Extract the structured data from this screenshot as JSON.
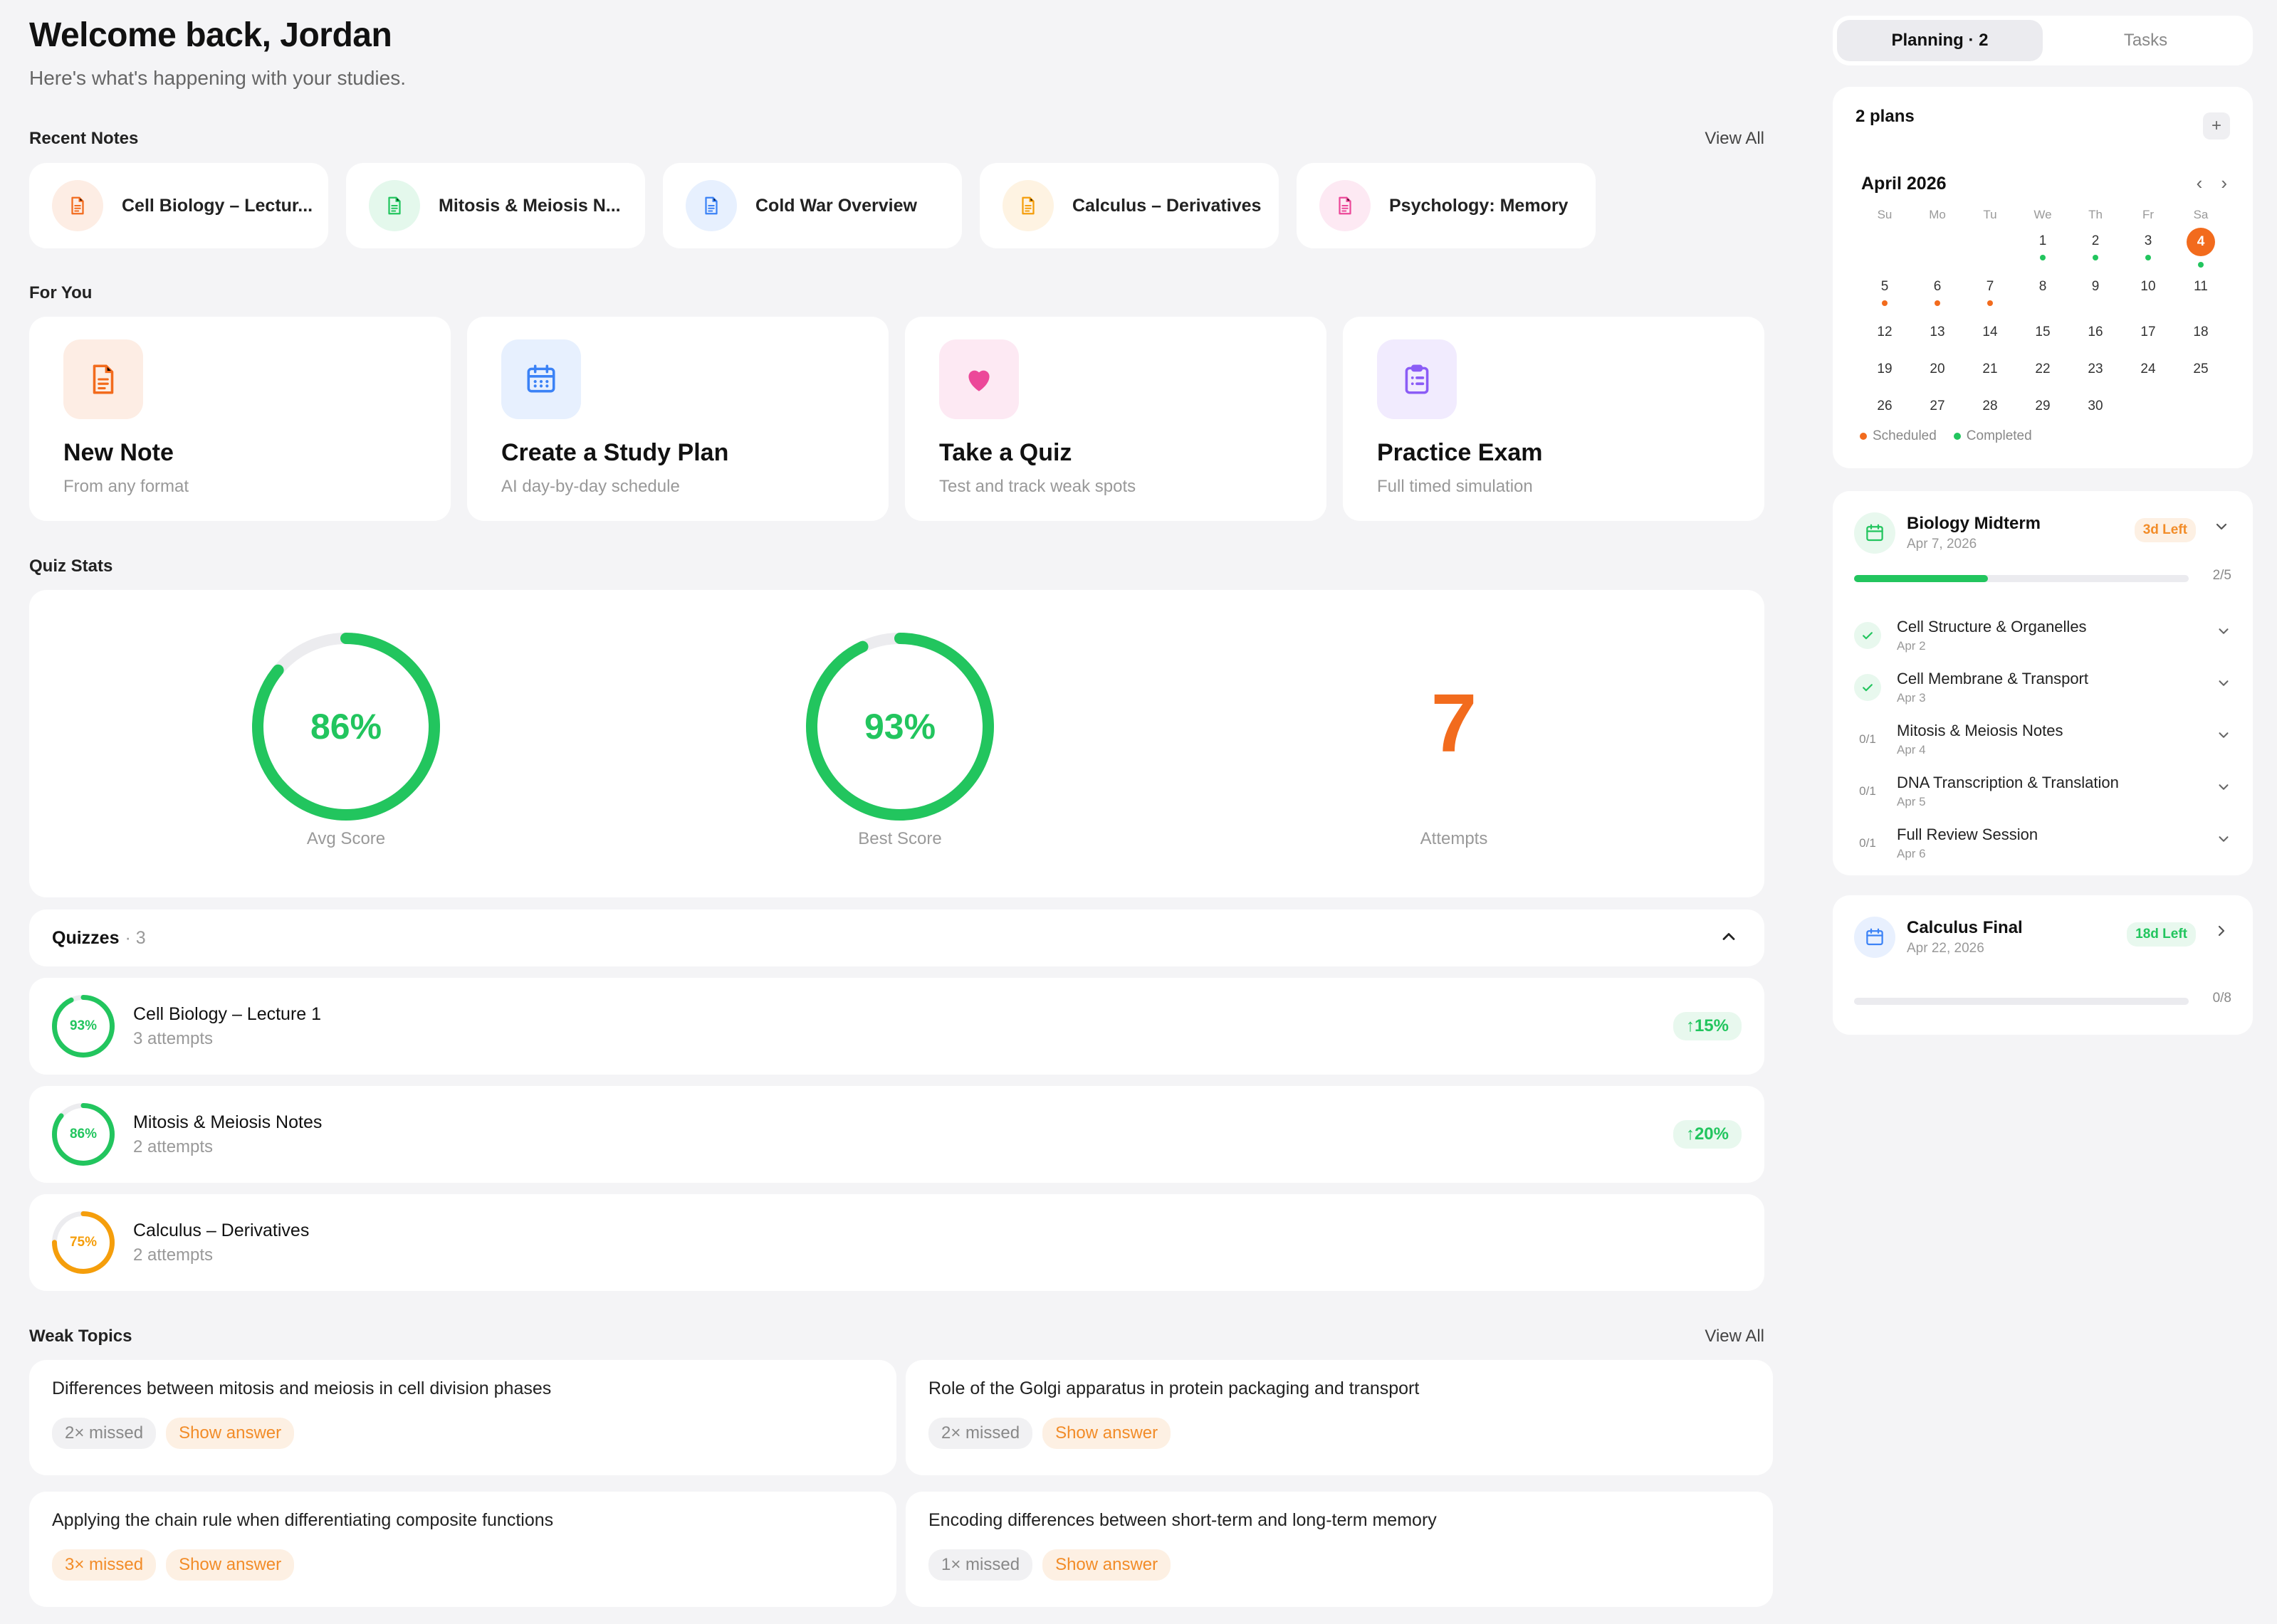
{
  "header": {
    "title": "Welcome back, Jordan",
    "subtitle": "Here's what's happening with your studies."
  },
  "recent_notes": {
    "label": "Recent Notes",
    "view_all": "View All",
    "items": [
      {
        "title": "Cell Biology – Lectur...",
        "color": "#f26b1d"
      },
      {
        "title": "Mitosis & Meiosis N...",
        "color": "#22c55e"
      },
      {
        "title": "Cold War Overview",
        "color": "#3b82f6"
      },
      {
        "title": "Calculus – Derivatives",
        "color": "#f59e0b"
      },
      {
        "title": "Psychology: Memory",
        "color": "#ec4899"
      }
    ]
  },
  "for_you": {
    "label": "For You",
    "items": [
      {
        "title": "New Note",
        "desc": "From any format",
        "icon": "document-icon",
        "color": "#f26b1d"
      },
      {
        "title": "Create a Study Plan",
        "desc": "AI day-by-day schedule",
        "icon": "calendar-icon",
        "color": "#3b82f6"
      },
      {
        "title": "Take a Quiz",
        "desc": "Test and track weak spots",
        "icon": "heart-icon",
        "color": "#ec4899"
      },
      {
        "title": "Practice Exam",
        "desc": "Full timed simulation",
        "icon": "clipboard-icon",
        "color": "#8b5cf6"
      }
    ]
  },
  "quiz_stats": {
    "label": "Quiz Stats",
    "avg": {
      "value": "86%",
      "label": "Avg Score",
      "fraction": 0.86
    },
    "best": {
      "value": "93%",
      "label": "Best Score",
      "fraction": 0.93
    },
    "attempts": {
      "value": "7",
      "label": "Attempts"
    }
  },
  "quizzes": {
    "label": "Quizzes",
    "count": "· 3",
    "items": [
      {
        "name": "Cell Biology – Lecture 1",
        "attempts": "3 attempts",
        "score": "93%",
        "fraction": 0.93,
        "color": "#22c55e",
        "delta": "↑15%"
      },
      {
        "name": "Mitosis & Meiosis Notes",
        "attempts": "2 attempts",
        "score": "86%",
        "fraction": 0.86,
        "color": "#22c55e",
        "delta": "↑20%"
      },
      {
        "name": "Calculus – Derivatives",
        "attempts": "2 attempts",
        "score": "75%",
        "fraction": 0.75,
        "color": "#f59e0b",
        "delta": ""
      }
    ]
  },
  "weak_topics": {
    "label": "Weak Topics",
    "view_all": "View All",
    "items": [
      {
        "question": "Differences between mitosis and meiosis in cell division phases",
        "missed": "2× missed",
        "show": "Show answer"
      },
      {
        "question": "Role of the Golgi apparatus in protein packaging and transport",
        "missed": "2× missed",
        "show": "Show answer"
      },
      {
        "question": "Applying the chain rule when differentiating composite functions",
        "missed": "3× missed",
        "show": "Show answer"
      },
      {
        "question": "Encoding differences between short-term and long-term memory",
        "missed": "1× missed",
        "show": "Show answer"
      }
    ]
  },
  "sidebar": {
    "tabs": {
      "planning": "Planning · 2",
      "tasks": "Tasks"
    },
    "calendar": {
      "plans": "2 plans",
      "add": "+",
      "month": "April 2026",
      "prev": "‹",
      "next": "›",
      "dow": [
        "Su",
        "Mo",
        "Tu",
        "We",
        "Th",
        "Fr",
        "Sa"
      ],
      "weeks": [
        [
          "",
          "",
          "",
          "1",
          "2",
          "3",
          "4"
        ],
        [
          "5",
          "6",
          "7",
          "8",
          "9",
          "10",
          "11"
        ],
        [
          "12",
          "13",
          "14",
          "15",
          "16",
          "17",
          "18"
        ],
        [
          "19",
          "20",
          "21",
          "22",
          "23",
          "24",
          "25"
        ],
        [
          "26",
          "27",
          "28",
          "29",
          "30",
          "",
          ""
        ]
      ],
      "today": "4",
      "completed_days": [
        "1",
        "2",
        "3",
        "4"
      ],
      "scheduled_days": [
        "5",
        "6",
        "7"
      ],
      "legend": {
        "scheduled": "Scheduled",
        "completed": "Completed"
      },
      "colors": {
        "scheduled": "#f26b1d",
        "completed": "#22c55e"
      }
    },
    "plans": [
      {
        "title": "Biology Midterm",
        "date": "Apr 7, 2026",
        "left": "3d Left",
        "progress": "2/5",
        "fraction": 0.4,
        "steps": [
          {
            "name": "Cell Structure & Organelles",
            "date": "Apr 2",
            "done": true,
            "status": ""
          },
          {
            "name": "Cell Membrane & Transport",
            "date": "Apr 3",
            "done": true,
            "status": ""
          },
          {
            "name": "Mitosis & Meiosis Notes",
            "date": "Apr 4",
            "done": false,
            "status": "0/1"
          },
          {
            "name": "DNA Transcription & Translation",
            "date": "Apr 5",
            "done": false,
            "status": "0/1"
          },
          {
            "name": "Full Review Session",
            "date": "Apr 6",
            "done": false,
            "status": "0/1"
          }
        ]
      },
      {
        "title": "Calculus Final",
        "date": "Apr 22, 2026",
        "left": "18d Left",
        "progress": "0/8",
        "fraction": 0
      }
    ]
  }
}
